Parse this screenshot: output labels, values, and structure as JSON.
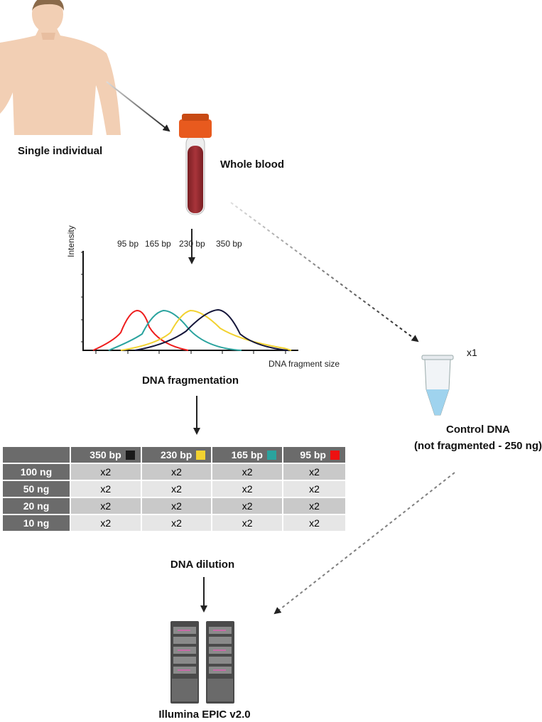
{
  "labels": {
    "individual": "Single individual",
    "blood": "Whole blood",
    "fragmentation": "DNA fragmentation",
    "control_title": "Control DNA",
    "control_sub": "(not fragmented - 250 ng)",
    "control_count": "x1",
    "dilution": "DNA dilution",
    "platform": "Illumina EPIC v2.0"
  },
  "chart_data": {
    "type": "line",
    "xlabel": "DNA fragment size",
    "ylabel": "Intensity",
    "series": [
      {
        "name": "95 bp",
        "color": "#ee1c1c"
      },
      {
        "name": "165 bp",
        "color": "#2aa39e"
      },
      {
        "name": "230 bp",
        "color": "#f2d230"
      },
      {
        "name": "350 bp",
        "color": "#15163a"
      }
    ]
  },
  "table": {
    "columns": [
      {
        "label": "350 bp",
        "color": "#1a1a1a"
      },
      {
        "label": "230 bp",
        "color": "#f2d230"
      },
      {
        "label": "165 bp",
        "color": "#2aa39e"
      },
      {
        "label": "95 bp",
        "color": "#ee1111"
      }
    ],
    "rows": [
      {
        "label": "100 ng",
        "cells": [
          "x2",
          "x2",
          "x2",
          "x2"
        ]
      },
      {
        "label": "50 ng",
        "cells": [
          "x2",
          "x2",
          "x2",
          "x2"
        ]
      },
      {
        "label": "20 ng",
        "cells": [
          "x2",
          "x2",
          "x2",
          "x2"
        ]
      },
      {
        "label": "10 ng",
        "cells": [
          "x2",
          "x2",
          "x2",
          "x2"
        ]
      }
    ]
  }
}
